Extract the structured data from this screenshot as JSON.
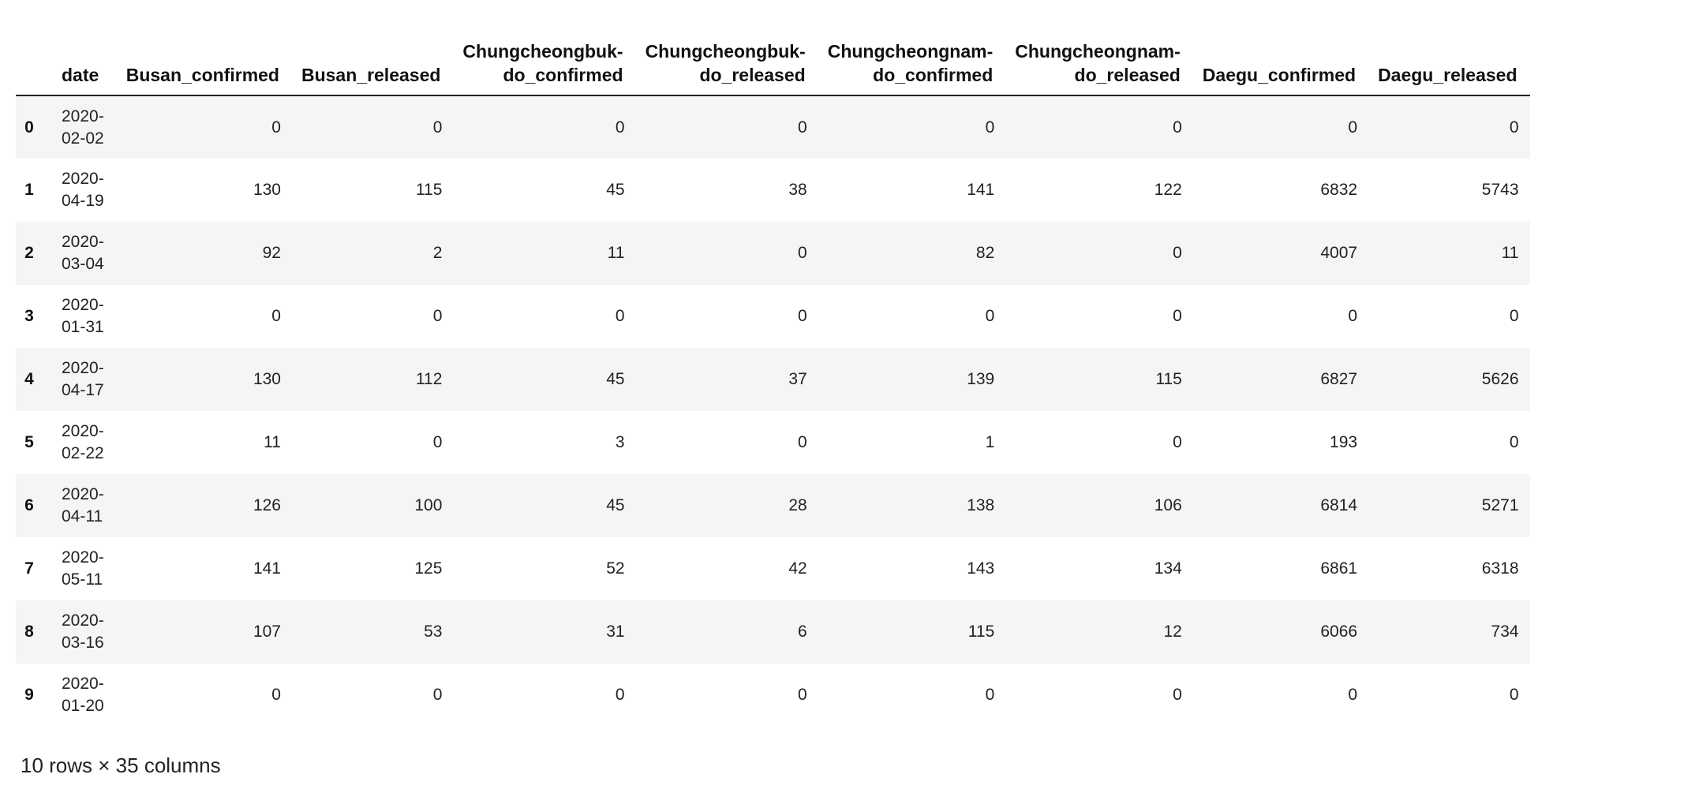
{
  "table": {
    "columns": [
      [
        "date"
      ],
      [
        "Busan_confirmed"
      ],
      [
        "Busan_released"
      ],
      [
        "Chungcheongbuk-",
        "do_confirmed"
      ],
      [
        "Chungcheongbuk-",
        "do_released"
      ],
      [
        "Chungcheongnam-",
        "do_confirmed"
      ],
      [
        "Chungcheongnam-",
        "do_released"
      ],
      [
        "Daegu_confirmed"
      ],
      [
        "Daegu_released"
      ]
    ],
    "rows": [
      {
        "index": "0",
        "date": [
          "2020-",
          "02-02"
        ],
        "values": [
          "0",
          "0",
          "0",
          "0",
          "0",
          "0",
          "0",
          "0"
        ]
      },
      {
        "index": "1",
        "date": [
          "2020-",
          "04-19"
        ],
        "values": [
          "130",
          "115",
          "45",
          "38",
          "141",
          "122",
          "6832",
          "5743"
        ]
      },
      {
        "index": "2",
        "date": [
          "2020-",
          "03-04"
        ],
        "values": [
          "92",
          "2",
          "11",
          "0",
          "82",
          "0",
          "4007",
          "11"
        ]
      },
      {
        "index": "3",
        "date": [
          "2020-",
          "01-31"
        ],
        "values": [
          "0",
          "0",
          "0",
          "0",
          "0",
          "0",
          "0",
          "0"
        ]
      },
      {
        "index": "4",
        "date": [
          "2020-",
          "04-17"
        ],
        "values": [
          "130",
          "112",
          "45",
          "37",
          "139",
          "115",
          "6827",
          "5626"
        ]
      },
      {
        "index": "5",
        "date": [
          "2020-",
          "02-22"
        ],
        "values": [
          "11",
          "0",
          "3",
          "0",
          "1",
          "0",
          "193",
          "0"
        ]
      },
      {
        "index": "6",
        "date": [
          "2020-",
          "04-11"
        ],
        "values": [
          "126",
          "100",
          "45",
          "28",
          "138",
          "106",
          "6814",
          "5271"
        ]
      },
      {
        "index": "7",
        "date": [
          "2020-",
          "05-11"
        ],
        "values": [
          "141",
          "125",
          "52",
          "42",
          "143",
          "134",
          "6861",
          "6318"
        ]
      },
      {
        "index": "8",
        "date": [
          "2020-",
          "03-16"
        ],
        "values": [
          "107",
          "53",
          "31",
          "6",
          "115",
          "12",
          "6066",
          "734"
        ]
      },
      {
        "index": "9",
        "date": [
          "2020-",
          "01-20"
        ],
        "values": [
          "0",
          "0",
          "0",
          "0",
          "0",
          "0",
          "0",
          "0"
        ]
      }
    ]
  },
  "footer": {
    "shape_text": "10 rows × 35 columns"
  }
}
